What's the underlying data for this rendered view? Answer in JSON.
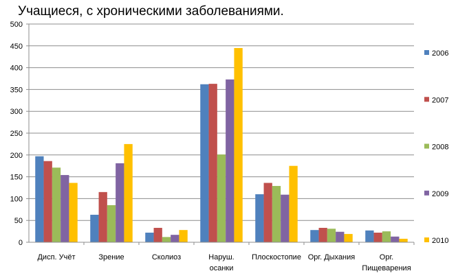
{
  "chart_data": {
    "type": "bar",
    "title": "Учащиеся, с хроническими заболеваниями.",
    "categories": [
      [
        "Дисп. Учёт"
      ],
      [
        "Зрение"
      ],
      [
        "Сколиоз"
      ],
      [
        "Наруш.",
        "осанки"
      ],
      [
        "Плоскостопие"
      ],
      [
        "Орг. Дыхания"
      ],
      [
        "Орг.",
        "Пищеварения"
      ]
    ],
    "series": [
      {
        "name": "2006",
        "color": "#4F81BD",
        "values": [
          197,
          63,
          22,
          362,
          110,
          28,
          27
        ]
      },
      {
        "name": "2007",
        "color": "#C0504D",
        "values": [
          186,
          115,
          33,
          363,
          136,
          33,
          22
        ]
      },
      {
        "name": "2008",
        "color": "#9BBB59",
        "values": [
          171,
          85,
          12,
          201,
          129,
          31,
          25
        ]
      },
      {
        "name": "2009",
        "color": "#8064A2",
        "values": [
          154,
          181,
          17,
          373,
          109,
          24,
          13
        ]
      },
      {
        "name": "2010",
        "color": "#FFC000",
        "values": [
          136,
          225,
          28,
          445,
          175,
          19,
          8
        ]
      }
    ],
    "ylim": [
      0,
      500
    ],
    "yticks": [
      0,
      50,
      100,
      150,
      200,
      250,
      300,
      350,
      400,
      450,
      500
    ],
    "grid": true,
    "legend_position": "right"
  }
}
